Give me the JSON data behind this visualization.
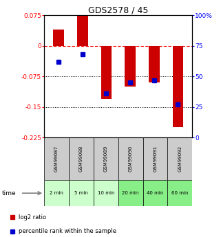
{
  "title": "GDS2578 / 45",
  "samples": [
    "GSM99087",
    "GSM99088",
    "GSM99089",
    "GSM99090",
    "GSM99091",
    "GSM99092"
  ],
  "time_labels": [
    "2 min",
    "5 min",
    "10 min",
    "20 min",
    "40 min",
    "60 min"
  ],
  "log2_ratio": [
    0.04,
    0.075,
    -0.13,
    -0.1,
    -0.09,
    -0.2
  ],
  "percentile_rank": [
    62,
    68,
    36,
    45,
    47,
    27
  ],
  "bar_color": "#cc0000",
  "dot_color": "#0000cc",
  "ylim_left": [
    -0.225,
    0.075
  ],
  "ylim_right": [
    0,
    100
  ],
  "yticks_left": [
    0.075,
    0,
    -0.075,
    -0.15,
    -0.225
  ],
  "yticks_right": [
    100,
    75,
    50,
    25,
    0
  ],
  "dotted_lines": [
    -0.075,
    -0.15
  ],
  "bg_color_samples": "#cccccc",
  "time_colors": [
    "#ccffcc",
    "#ccffcc",
    "#ccffcc",
    "#88ee88",
    "#88ee88",
    "#88ee88"
  ],
  "legend_bar_label": "log2 ratio",
  "legend_dot_label": "percentile rank within the sample"
}
